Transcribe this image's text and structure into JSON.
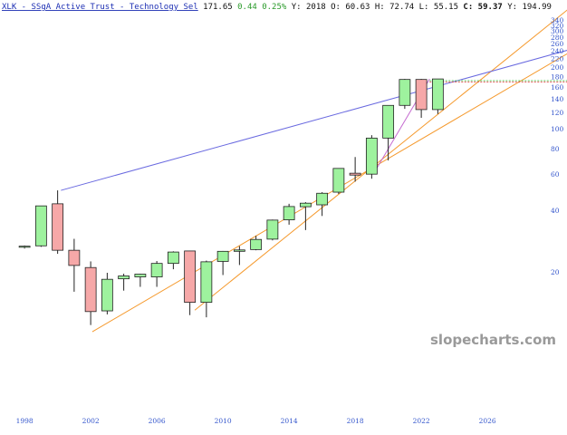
{
  "header": {
    "symbol": "XLK - SSgA Active Trust - Technology Sel",
    "last": "171.65",
    "change": "0.44",
    "change_pct": "0.25%",
    "y_label": "Y:",
    "year": "2018",
    "o_label": "O:",
    "open": "60.63",
    "h_label": "H:",
    "high": "72.74",
    "l_label": "L:",
    "low": "55.15",
    "c_label": "C:",
    "close": "59.37",
    "y2_label": "Y:",
    "y2": "194.99"
  },
  "watermark": "slopecharts.com",
  "colors": {
    "up_fill": "#9ef29e",
    "down_fill": "#f6a8a8",
    "candle_edge": "#222222",
    "channel": "#f59a2e",
    "trend": "#6a6ae0",
    "magenta": "#c56ad0",
    "tick_text": "#3355cc",
    "price_green": "#28b828",
    "price_red": "#e03030"
  },
  "chart_data": {
    "type": "candlestick",
    "title": "XLK - SSgA Active Trust - Technology Sel",
    "timeframe": "yearly",
    "y_scale": "log",
    "ylim": [
      9,
      340
    ],
    "xlim": [
      1997.5,
      2031.5
    ],
    "y_ticks": [
      20,
      40,
      60,
      80,
      100,
      120,
      140,
      160,
      180,
      200,
      220,
      240,
      260,
      280,
      300,
      320,
      340
    ],
    "x_ticks": [
      "1998",
      "2002",
      "2006",
      "2010",
      "2014",
      "2018",
      "2022",
      "2026"
    ],
    "candles": [
      {
        "year": 1998,
        "open": 26.5,
        "high": 26.9,
        "low": 26.0,
        "close": 26.7
      },
      {
        "year": 1999,
        "open": 26.8,
        "high": 42.0,
        "low": 26.5,
        "close": 42.0
      },
      {
        "year": 2000,
        "open": 43.0,
        "high": 50.0,
        "low": 24.5,
        "close": 25.5
      },
      {
        "year": 2001,
        "open": 25.5,
        "high": 29.0,
        "low": 16.0,
        "close": 21.5
      },
      {
        "year": 2002,
        "open": 21.0,
        "high": 22.5,
        "low": 11.0,
        "close": 12.8
      },
      {
        "year": 2003,
        "open": 12.9,
        "high": 19.8,
        "low": 12.4,
        "close": 18.4
      },
      {
        "year": 2004,
        "open": 18.5,
        "high": 19.6,
        "low": 16.2,
        "close": 19.1
      },
      {
        "year": 2005,
        "open": 18.9,
        "high": 19.6,
        "low": 16.9,
        "close": 19.5
      },
      {
        "year": 2006,
        "open": 18.9,
        "high": 22.6,
        "low": 16.9,
        "close": 22.0
      },
      {
        "year": 2007,
        "open": 22.0,
        "high": 25.2,
        "low": 20.6,
        "close": 25.0
      },
      {
        "year": 2008,
        "open": 25.3,
        "high": 25.4,
        "low": 12.3,
        "close": 14.2
      },
      {
        "year": 2009,
        "open": 14.2,
        "high": 22.7,
        "low": 12.0,
        "close": 22.4
      },
      {
        "year": 2010,
        "open": 22.5,
        "high": 25.3,
        "low": 19.3,
        "close": 25.2
      },
      {
        "year": 2011,
        "open": 25.2,
        "high": 26.7,
        "low": 21.6,
        "close": 25.6
      },
      {
        "year": 2012,
        "open": 25.7,
        "high": 30.0,
        "low": 25.5,
        "close": 28.8
      },
      {
        "year": 2013,
        "open": 28.9,
        "high": 36.0,
        "low": 28.5,
        "close": 35.8
      },
      {
        "year": 2014,
        "open": 35.9,
        "high": 43.0,
        "low": 34.0,
        "close": 41.7
      },
      {
        "year": 2015,
        "open": 41.6,
        "high": 43.8,
        "low": 32.0,
        "close": 43.3
      },
      {
        "year": 2016,
        "open": 42.5,
        "high": 49.0,
        "low": 37.5,
        "close": 48.4
      },
      {
        "year": 2017,
        "open": 49.0,
        "high": 64.0,
        "low": 48.0,
        "close": 64.0
      },
      {
        "year": 2018,
        "open": 60.63,
        "high": 72.74,
        "low": 55.15,
        "close": 59.37
      },
      {
        "year": 2019,
        "open": 60.0,
        "high": 93.0,
        "low": 57.0,
        "close": 90.0
      },
      {
        "year": 2020,
        "open": 90.0,
        "high": 130.0,
        "low": 70.0,
        "close": 130.0
      },
      {
        "year": 2021,
        "open": 130.0,
        "high": 175.0,
        "low": 125.0,
        "close": 174.0
      },
      {
        "year": 2022,
        "open": 174.0,
        "high": 175.0,
        "low": 113.0,
        "close": 124.0
      },
      {
        "year": 2023,
        "open": 124.0,
        "high": 175.0,
        "low": 118.0,
        "close": 175.0
      }
    ],
    "trendlines": [
      {
        "name": "channel-lower",
        "color": "channel",
        "from": [
          2002.1,
          10.2
        ],
        "to": [
          2031.5,
          250
        ]
      },
      {
        "name": "channel-upper",
        "color": "channel",
        "from": [
          2008.3,
          13.0
        ],
        "to": [
          2031.5,
          420
        ]
      },
      {
        "name": "resistance",
        "color": "trend",
        "from": [
          2000.2,
          50.0
        ],
        "to": [
          2031.5,
          250
        ]
      },
      {
        "name": "magenta-segment",
        "color": "magenta",
        "from": [
          2019.2,
          62.0
        ],
        "to": [
          2022.5,
          175.0
        ]
      }
    ],
    "price_levels": [
      {
        "value": 171.65,
        "color": "price_green"
      },
      {
        "value": 169.0,
        "color": "price_red"
      }
    ]
  }
}
